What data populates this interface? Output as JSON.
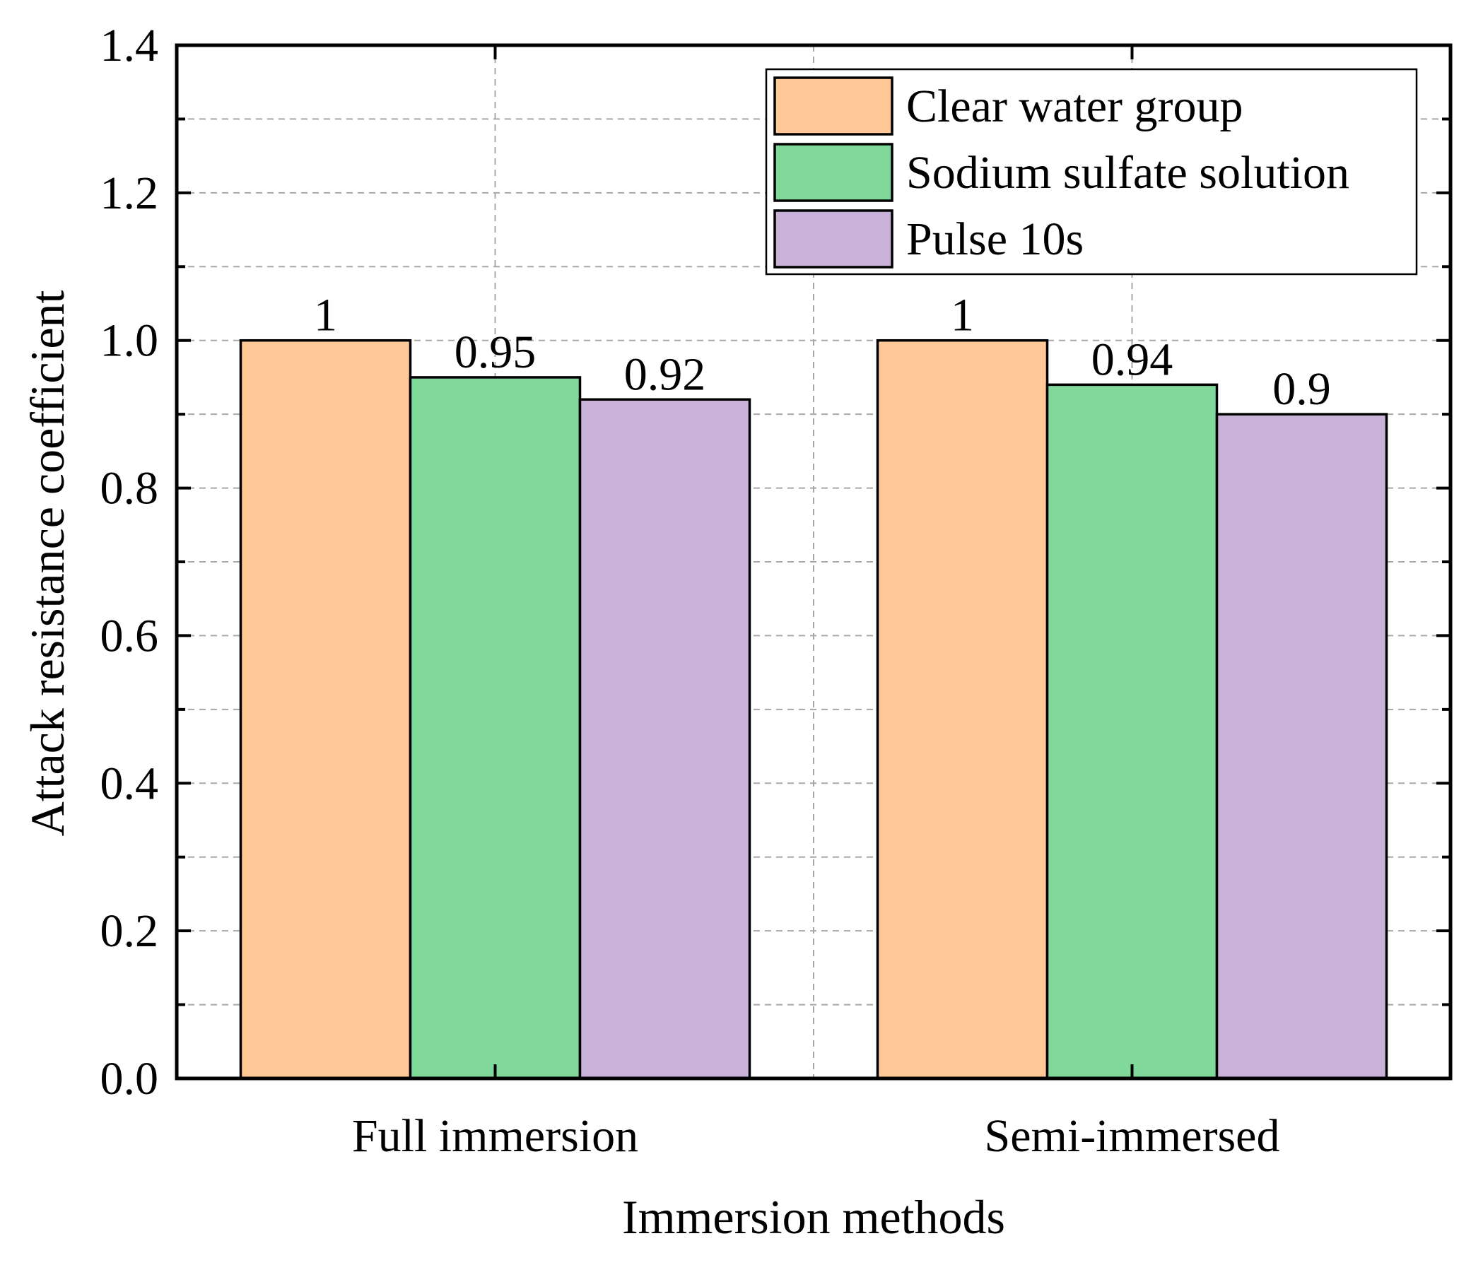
{
  "chart_data": {
    "type": "bar",
    "title": "",
    "xlabel": "Immersion methods",
    "ylabel": "Attack resistance coefficient",
    "categories": [
      "Full immersion",
      "Semi-immersed"
    ],
    "series": [
      {
        "name": "Clear water group",
        "values": [
          1,
          1
        ],
        "labels": [
          "1",
          "1"
        ],
        "color": "#FFC896"
      },
      {
        "name": "Sodium sulfate solution",
        "values": [
          0.95,
          0.94
        ],
        "labels": [
          "0.95",
          "0.94"
        ],
        "color": "#80D99B"
      },
      {
        "name": "Pulse 10s",
        "values": [
          0.92,
          0.9
        ],
        "labels": [
          "0.92",
          "0.9"
        ],
        "color": "#C9B2D7"
      }
    ],
    "ylim": [
      0,
      1.4
    ],
    "yticks": [
      0,
      0.2,
      0.4,
      0.6,
      0.8,
      1.0,
      1.2,
      1.4
    ],
    "ytick_labels": [
      "0.0",
      "0.2",
      "0.4",
      "0.6",
      "0.8",
      "1.0",
      "1.2",
      "1.4"
    ],
    "grid": true,
    "legend_position": "top-right"
  }
}
